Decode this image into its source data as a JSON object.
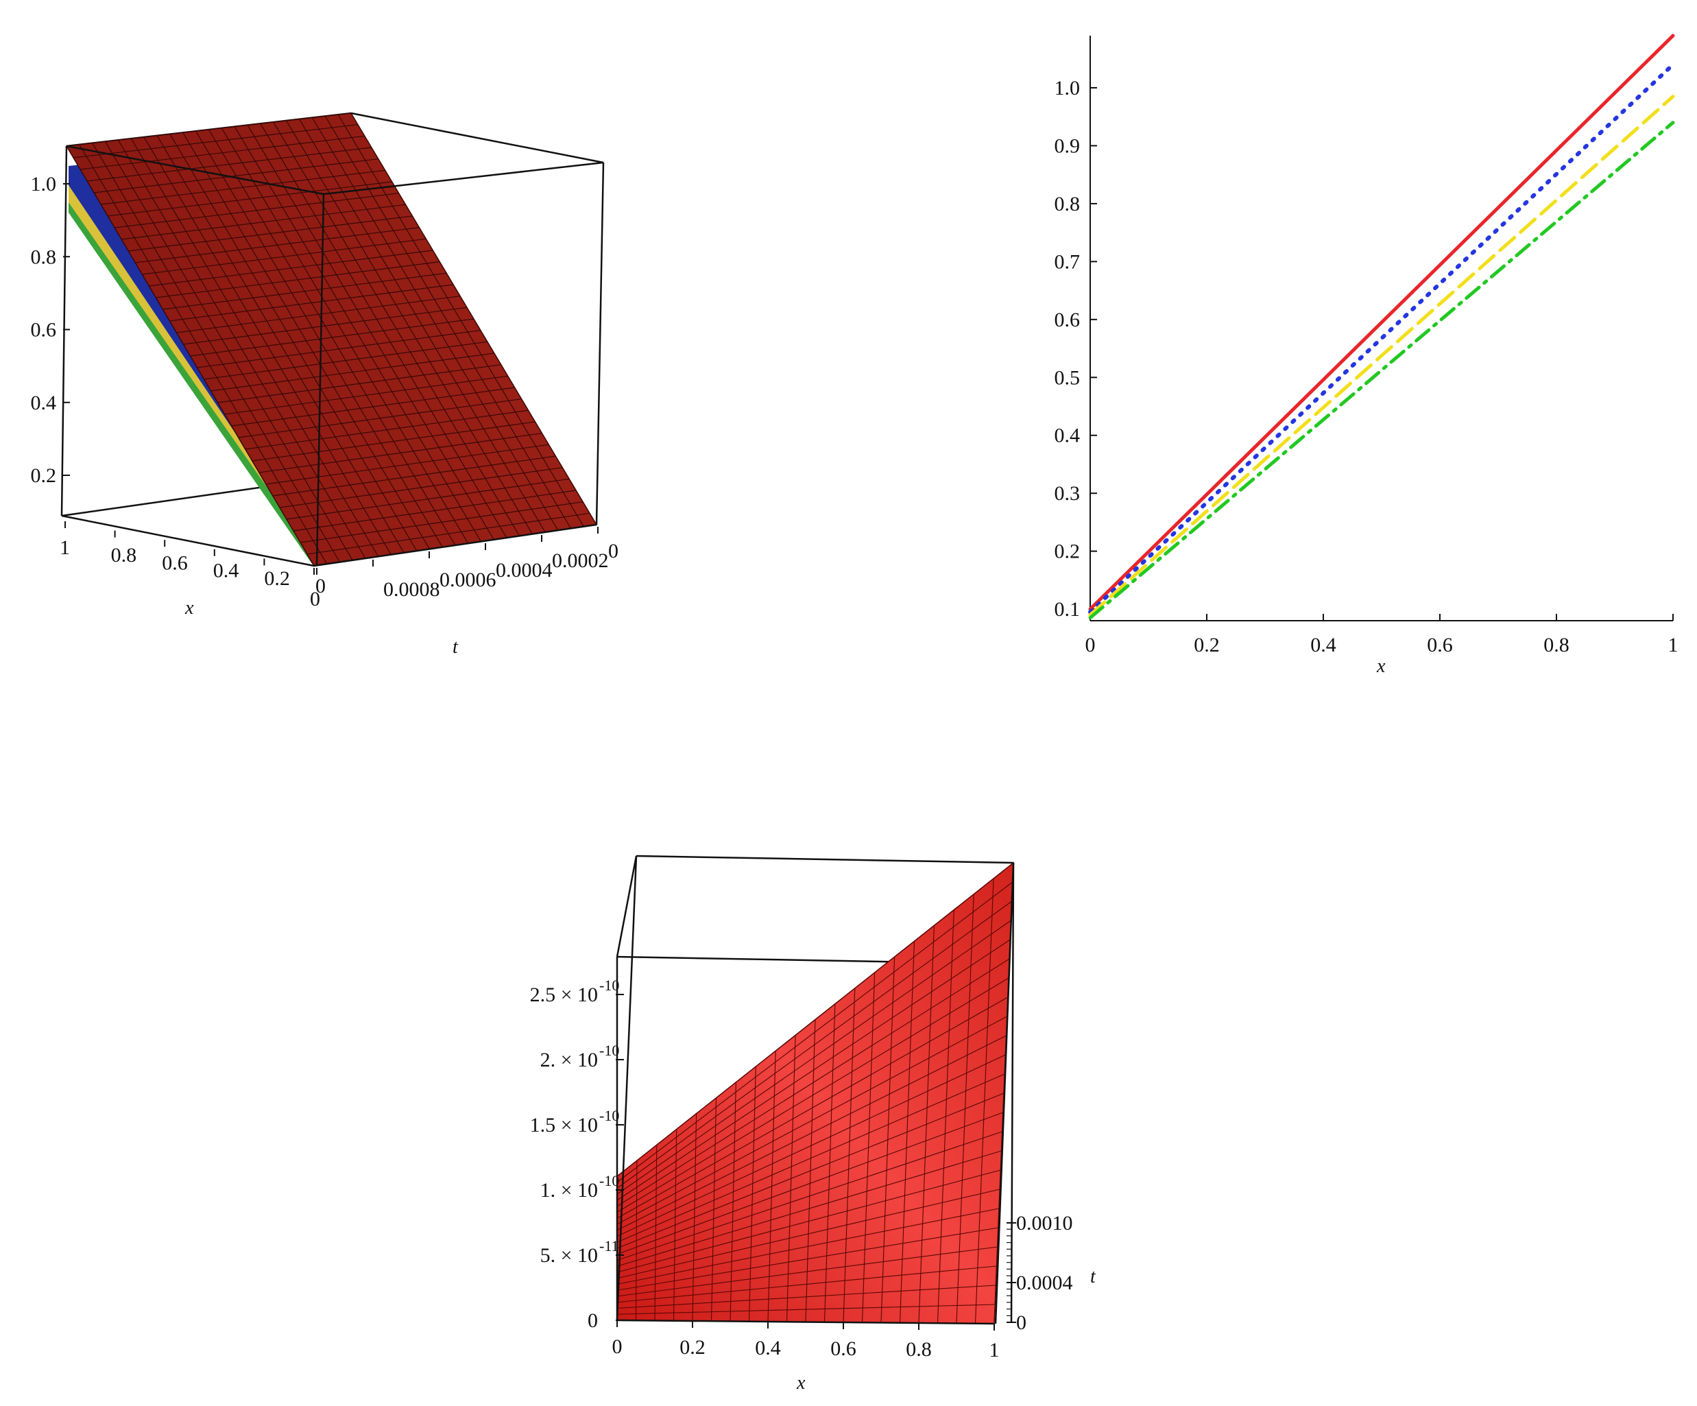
{
  "chart_data": [
    {
      "type": "surface3d",
      "title": "",
      "xlabel": "x",
      "tlabel": "t",
      "x_ticks": [
        "1",
        "0.8",
        "0.6",
        "0.4",
        "0.2",
        "0"
      ],
      "t_ticks": [
        "0",
        "0.0008",
        "0.0006",
        "0.0004",
        "0.0002",
        "0"
      ],
      "z_ticks": [
        "1.0",
        "0.8",
        "0.6",
        "0.4",
        "0.2"
      ],
      "xlim": [
        0,
        1
      ],
      "tlim": [
        0,
        0.001
      ],
      "zlim": [
        0.09,
        1.1
      ],
      "surface_colors": [
        "#8e1a12",
        "#1f2fa0",
        "#d9c23a",
        "#3aa43a"
      ],
      "grid": true
    },
    {
      "type": "line",
      "title": "",
      "xlabel": "x",
      "ylabel": "",
      "x_ticks": [
        "0",
        "0.2",
        "0.4",
        "0.6",
        "0.8",
        "1"
      ],
      "y_ticks": [
        "0.1",
        "0.2",
        "0.3",
        "0.4",
        "0.5",
        "0.6",
        "0.7",
        "0.8",
        "0.9",
        "1.0"
      ],
      "xlim": [
        0,
        1
      ],
      "ylim": [
        0.08,
        1.09
      ],
      "grid": false,
      "series": [
        {
          "x": [
            0,
            1
          ],
          "values": [
            0.1,
            1.09
          ],
          "color": "#e8262b",
          "dash": "solid"
        },
        {
          "x": [
            0,
            1
          ],
          "values": [
            0.095,
            1.04
          ],
          "color": "#2436e0",
          "dash": "dot"
        },
        {
          "x": [
            0,
            1
          ],
          "values": [
            0.09,
            0.985
          ],
          "color": "#f2df1c",
          "dash": "dash"
        },
        {
          "x": [
            0,
            1
          ],
          "values": [
            0.085,
            0.94
          ],
          "color": "#22c822",
          "dash": "dashdot"
        }
      ]
    },
    {
      "type": "surface3d",
      "title": "",
      "xlabel": "x",
      "tlabel": "t",
      "x_ticks": [
        "0",
        "0.2",
        "0.4",
        "0.6",
        "0.8",
        "1"
      ],
      "t_ticks": [
        "0",
        "0.0004",
        "0.0010"
      ],
      "z_ticks": [
        "0",
        "5. × 10",
        "1. × 10",
        "1.5 × 10",
        "2. × 10",
        "2.5 × 10"
      ],
      "z_exponents": [
        "",
        "-11",
        "-10",
        "-10",
        "-10",
        "-10"
      ],
      "xlim": [
        0,
        1
      ],
      "tlim": [
        0,
        0.001
      ],
      "zlim": [
        0,
        2.9e-10
      ],
      "surface_colors": [
        "#e32a24"
      ],
      "grid": true
    }
  ]
}
